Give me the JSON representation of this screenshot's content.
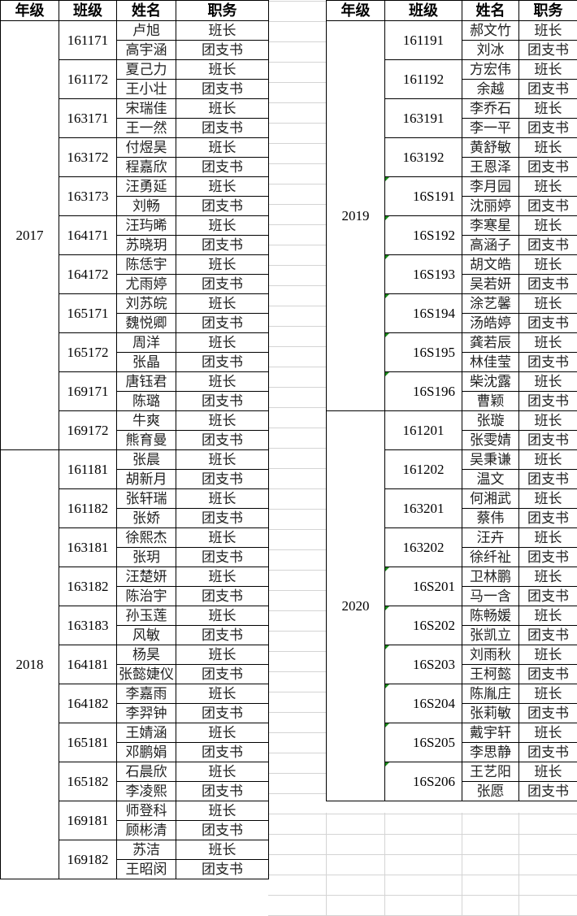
{
  "headers": [
    "年级",
    "班级",
    "姓名",
    "职务"
  ],
  "roles": {
    "leader": "班长",
    "secretary": "团支书"
  },
  "indicator_color": "#1a8a1a",
  "left_table": [
    {
      "grade": "2017",
      "classes": [
        {
          "class": "161171",
          "members": [
            [
              "卢旭",
              "班长"
            ],
            [
              "高宇涵",
              "团支书"
            ]
          ]
        },
        {
          "class": "161172",
          "members": [
            [
              "夏己力",
              "班长"
            ],
            [
              "王小壮",
              "团支书"
            ]
          ]
        },
        {
          "class": "163171",
          "members": [
            [
              "宋瑞佳",
              "班长"
            ],
            [
              "王一然",
              "团支书"
            ]
          ]
        },
        {
          "class": "163172",
          "members": [
            [
              "付煜昊",
              "班长"
            ],
            [
              "程嘉欣",
              "团支书"
            ]
          ]
        },
        {
          "class": "163173",
          "members": [
            [
              "汪勇延",
              "班长"
            ],
            [
              "刘畅",
              "团支书"
            ]
          ]
        },
        {
          "class": "164171",
          "members": [
            [
              "汪玙晞",
              "班长"
            ],
            [
              "苏晓玥",
              "团支书"
            ]
          ]
        },
        {
          "class": "164172",
          "members": [
            [
              "陈恁宇",
              "班长"
            ],
            [
              "尤雨婷",
              "团支书"
            ]
          ]
        },
        {
          "class": "165171",
          "members": [
            [
              "刘苏皖",
              "班长"
            ],
            [
              "魏悦卿",
              "团支书"
            ]
          ]
        },
        {
          "class": "165172",
          "members": [
            [
              "周洋",
              "班长"
            ],
            [
              "张晶",
              "团支书"
            ]
          ]
        },
        {
          "class": "169171",
          "members": [
            [
              "唐钰君",
              "班长"
            ],
            [
              "陈璐",
              "团支书"
            ]
          ]
        },
        {
          "class": "169172",
          "members": [
            [
              "牛爽",
              "班长"
            ],
            [
              "熊育曼",
              "团支书"
            ]
          ]
        }
      ]
    },
    {
      "grade": "2018",
      "classes": [
        {
          "class": "161181",
          "members": [
            [
              "张晨",
              "班长"
            ],
            [
              "胡新月",
              "团支书"
            ]
          ]
        },
        {
          "class": "161182",
          "members": [
            [
              "张轩瑞",
              "班长"
            ],
            [
              "张娇",
              "团支书"
            ]
          ]
        },
        {
          "class": "163181",
          "members": [
            [
              "徐熙杰",
              "班长"
            ],
            [
              "张玥",
              "团支书"
            ]
          ]
        },
        {
          "class": "163182",
          "members": [
            [
              "汪楚妍",
              "班长"
            ],
            [
              "陈治宇",
              "团支书"
            ]
          ]
        },
        {
          "class": "163183",
          "members": [
            [
              "孙玉莲",
              "班长"
            ],
            [
              "风敏",
              "团支书"
            ]
          ]
        },
        {
          "class": "164181",
          "members": [
            [
              "杨昊",
              "班长"
            ],
            [
              "张懿婕仪",
              "团支书"
            ]
          ]
        },
        {
          "class": "164182",
          "members": [
            [
              "李嘉雨",
              "班长"
            ],
            [
              "李羿钟",
              "团支书"
            ]
          ]
        },
        {
          "class": "165181",
          "members": [
            [
              "王婧涵",
              "班长"
            ],
            [
              "邓鹏娟",
              "团支书"
            ]
          ]
        },
        {
          "class": "165182",
          "members": [
            [
              "石晨欣",
              "班长"
            ],
            [
              "李凌熙",
              "团支书"
            ]
          ]
        },
        {
          "class": "169181",
          "members": [
            [
              "师登科",
              "班长"
            ],
            [
              "顾彬清",
              "团支书"
            ]
          ]
        },
        {
          "class": "169182",
          "members": [
            [
              "苏洁",
              "班长"
            ],
            [
              "王昭闵",
              "团支书"
            ]
          ]
        }
      ]
    }
  ],
  "right_table": [
    {
      "grade": "2019",
      "classes": [
        {
          "class": "161191",
          "members": [
            [
              "郝文竹",
              "班长"
            ],
            [
              "刘冰",
              "团支书"
            ]
          ]
        },
        {
          "class": "161192",
          "members": [
            [
              "方宏伟",
              "班长"
            ],
            [
              "余越",
              "团支书"
            ]
          ]
        },
        {
          "class": "163191",
          "members": [
            [
              "李乔石",
              "班长"
            ],
            [
              "李一平",
              "团支书"
            ]
          ]
        },
        {
          "class": "163192",
          "members": [
            [
              "黄舒敏",
              "班长"
            ],
            [
              "王恩泽",
              "团支书"
            ]
          ]
        },
        {
          "class": "16S191",
          "text_number": true,
          "members": [
            [
              "李月园",
              "班长"
            ],
            [
              "沈丽婷",
              "团支书"
            ]
          ]
        },
        {
          "class": "16S192",
          "text_number": true,
          "members": [
            [
              "李寒星",
              "班长"
            ],
            [
              "高涵子",
              "团支书"
            ]
          ]
        },
        {
          "class": "16S193",
          "text_number": true,
          "members": [
            [
              "胡文皓",
              "班长"
            ],
            [
              "吴若妍",
              "团支书"
            ]
          ]
        },
        {
          "class": "16S194",
          "text_number": true,
          "members": [
            [
              "涂艺馨",
              "班长"
            ],
            [
              "汤皓婷",
              "团支书"
            ]
          ]
        },
        {
          "class": "16S195",
          "text_number": true,
          "members": [
            [
              "龚若辰",
              "班长"
            ],
            [
              "林佳莹",
              "团支书"
            ]
          ]
        },
        {
          "class": "16S196",
          "text_number": true,
          "members": [
            [
              "柴沈露",
              "班长"
            ],
            [
              "曹颖",
              "团支书"
            ]
          ]
        }
      ]
    },
    {
      "grade": "2020",
      "classes": [
        {
          "class": "161201",
          "members": [
            [
              "张璇",
              "班长"
            ],
            [
              "张雯婧",
              "团支书"
            ]
          ]
        },
        {
          "class": "161202",
          "members": [
            [
              "吴秉谦",
              "班长"
            ],
            [
              "温文",
              "团支书"
            ]
          ]
        },
        {
          "class": "163201",
          "members": [
            [
              "何湘武",
              "班长"
            ],
            [
              "蔡伟",
              "团支书"
            ]
          ]
        },
        {
          "class": "163202",
          "members": [
            [
              "汪卉",
              "班长"
            ],
            [
              "徐纤祉",
              "团支书"
            ]
          ]
        },
        {
          "class": "16S201",
          "text_number": true,
          "members": [
            [
              "卫林鹏",
              "班长"
            ],
            [
              "马一含",
              "团支书"
            ]
          ]
        },
        {
          "class": "16S202",
          "text_number": true,
          "members": [
            [
              "陈畅媛",
              "班长"
            ],
            [
              "张凯立",
              "团支书"
            ]
          ]
        },
        {
          "class": "16S203",
          "text_number": true,
          "members": [
            [
              "刘雨秋",
              "班长"
            ],
            [
              "王柯懿",
              "团支书"
            ]
          ]
        },
        {
          "class": "16S204",
          "text_number": true,
          "members": [
            [
              "陈胤庄",
              "班长"
            ],
            [
              "张莉敏",
              "团支书"
            ]
          ]
        },
        {
          "class": "16S205",
          "text_number": true,
          "members": [
            [
              "戴宇轩",
              "班长"
            ],
            [
              "李思静",
              "团支书"
            ]
          ]
        },
        {
          "class": "16S206",
          "text_number": true,
          "members": [
            [
              "王艺阳",
              "班长"
            ],
            [
              "张愿",
              "团支书"
            ]
          ]
        }
      ]
    }
  ]
}
